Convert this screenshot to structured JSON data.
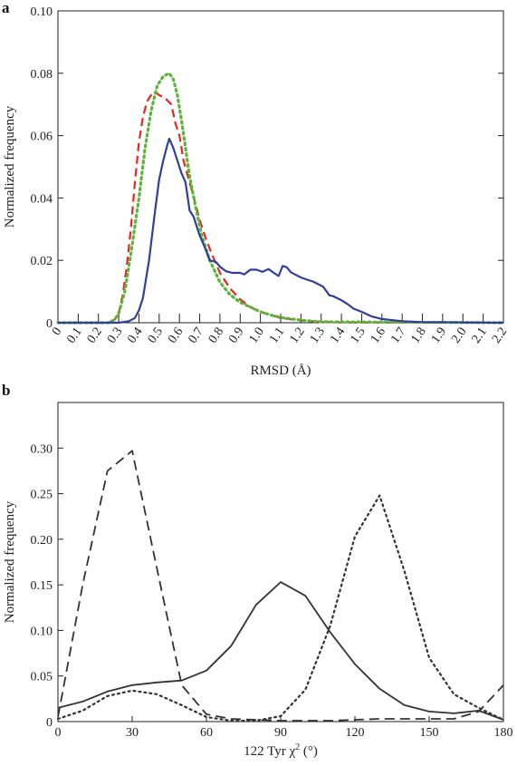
{
  "panels": [
    {
      "label": "a"
    },
    {
      "label": "b"
    }
  ],
  "chart_data": [
    {
      "type": "line",
      "xlabel": "RMSD (Å)",
      "ylabel": "Normalized frequency",
      "xlim": [
        0,
        2.2
      ],
      "ylim": [
        0,
        0.1
      ],
      "xticks": [
        "0",
        "0.1",
        "0.2",
        "0.3",
        "0.4",
        "0.5",
        "0.6",
        "0.7",
        "0.8",
        "0.9",
        "1.0",
        "1.1",
        "1.2",
        "1.3",
        "1.4",
        "1.5",
        "1.6",
        "1.7",
        "1.8",
        "1.9",
        "2.0",
        "2.1",
        "2.2"
      ],
      "yticks": [
        "0",
        "0.02",
        "0.04",
        "0.06",
        "0.08",
        "0.10"
      ],
      "grid": false,
      "series": [
        {
          "color": "#2e3f9e",
          "style": "solid",
          "x": [
            0,
            0.3,
            0.35,
            0.38,
            0.4,
            0.42,
            0.45,
            0.48,
            0.5,
            0.52,
            0.54,
            0.55,
            0.57,
            0.59,
            0.61,
            0.63,
            0.65,
            0.67,
            0.7,
            0.72,
            0.75,
            0.78,
            0.8,
            0.83,
            0.86,
            0.9,
            0.92,
            0.95,
            0.98,
            1.01,
            1.04,
            1.07,
            1.09,
            1.11,
            1.13,
            1.15,
            1.17,
            1.2,
            1.23,
            1.26,
            1.29,
            1.31,
            1.34,
            1.36,
            1.4,
            1.43,
            1.46,
            1.5,
            1.55,
            1.6,
            1.7,
            1.8,
            2.2
          ],
          "y": [
            0,
            0,
            0.0005,
            0.0015,
            0.004,
            0.008,
            0.02,
            0.036,
            0.046,
            0.052,
            0.057,
            0.059,
            0.056,
            0.052,
            0.048,
            0.045,
            0.036,
            0.034,
            0.028,
            0.025,
            0.02,
            0.0195,
            0.018,
            0.0165,
            0.016,
            0.016,
            0.0155,
            0.017,
            0.017,
            0.0163,
            0.0172,
            0.0158,
            0.015,
            0.0182,
            0.0178,
            0.0162,
            0.0155,
            0.0145,
            0.0138,
            0.0132,
            0.0122,
            0.0115,
            0.0088,
            0.0085,
            0.0072,
            0.006,
            0.0045,
            0.0035,
            0.002,
            0.0012,
            0.0005,
            0.0002,
            0
          ]
        },
        {
          "color": "#e8251f",
          "style": "dashed",
          "x": [
            0,
            0.25,
            0.28,
            0.3,
            0.32,
            0.34,
            0.36,
            0.38,
            0.4,
            0.42,
            0.44,
            0.46,
            0.48,
            0.5,
            0.53,
            0.56,
            0.58,
            0.6,
            0.62,
            0.65,
            0.68,
            0.7,
            0.73,
            0.76,
            0.8,
            0.85,
            0.9,
            0.95,
            1.0,
            1.05,
            1.1,
            1.2,
            1.3,
            1.4,
            2.2
          ],
          "y": [
            0,
            0,
            0.001,
            0.003,
            0.009,
            0.018,
            0.03,
            0.045,
            0.058,
            0.066,
            0.071,
            0.073,
            0.074,
            0.073,
            0.072,
            0.07,
            0.064,
            0.06,
            0.052,
            0.045,
            0.038,
            0.033,
            0.027,
            0.022,
            0.016,
            0.011,
            0.0075,
            0.005,
            0.0035,
            0.0025,
            0.0015,
            0.0007,
            0.0003,
            0.0001,
            0
          ]
        },
        {
          "color": "#5ab53a",
          "style": "dotted",
          "x": [
            0,
            0.25,
            0.28,
            0.3,
            0.33,
            0.36,
            0.4,
            0.43,
            0.46,
            0.49,
            0.52,
            0.55,
            0.57,
            0.59,
            0.61,
            0.63,
            0.65,
            0.68,
            0.71,
            0.75,
            0.8,
            0.85,
            0.9,
            0.95,
            1.0,
            1.05,
            1.1,
            1.2,
            1.3,
            2.2
          ],
          "y": [
            0,
            0,
            0.001,
            0.003,
            0.01,
            0.022,
            0.04,
            0.056,
            0.068,
            0.076,
            0.079,
            0.08,
            0.078,
            0.073,
            0.065,
            0.056,
            0.047,
            0.037,
            0.028,
            0.02,
            0.013,
            0.009,
            0.0065,
            0.005,
            0.0035,
            0.0025,
            0.0017,
            0.0008,
            0.0003,
            0
          ]
        }
      ]
    },
    {
      "type": "line",
      "xlabel_main": "122 Tyr χ",
      "xlabel_sup": "2",
      "xlabel_unit": " (°)",
      "ylabel": "Normalized frequency",
      "xlim": [
        0,
        180
      ],
      "ylim": [
        0,
        0.35
      ],
      "xticks": [
        "0",
        "30",
        "60",
        "90",
        "120",
        "150",
        "180"
      ],
      "yticks": [
        "0",
        "0.05",
        "0.10",
        "0.15",
        "0.20",
        "0.25",
        "0.30"
      ],
      "grid": false,
      "series": [
        {
          "color": "#333333",
          "style": "solid",
          "x": [
            0,
            10,
            20,
            30,
            40,
            50,
            60,
            70,
            80,
            90,
            100,
            110,
            120,
            130,
            140,
            150,
            160,
            170,
            180
          ],
          "y": [
            0.015,
            0.022,
            0.033,
            0.04,
            0.043,
            0.045,
            0.056,
            0.083,
            0.128,
            0.153,
            0.138,
            0.098,
            0.063,
            0.036,
            0.018,
            0.011,
            0.009,
            0.012,
            0.002
          ]
        },
        {
          "color": "#333333",
          "style": "dashed",
          "x": [
            0,
            10,
            20,
            30,
            40,
            50,
            60,
            70,
            80,
            90,
            100,
            110,
            120,
            130,
            140,
            150,
            160,
            170,
            180
          ],
          "y": [
            0.005,
            0.15,
            0.275,
            0.297,
            0.168,
            0.04,
            0.008,
            0.003,
            0.002,
            0.001,
            0.001,
            0.001,
            0.002,
            0.003,
            0.003,
            0.003,
            0.003,
            0.011,
            0.04
          ]
        },
        {
          "color": "#333333",
          "style": "dotted",
          "x": [
            0,
            10,
            20,
            30,
            40,
            50,
            60,
            70,
            80,
            90,
            100,
            110,
            120,
            130,
            140,
            150,
            160,
            170,
            180
          ],
          "y": [
            0.003,
            0.012,
            0.028,
            0.034,
            0.03,
            0.018,
            0.005,
            0.001,
            0.001,
            0.006,
            0.035,
            0.105,
            0.203,
            0.248,
            0.165,
            0.07,
            0.03,
            0.015,
            0.002
          ]
        }
      ]
    }
  ]
}
